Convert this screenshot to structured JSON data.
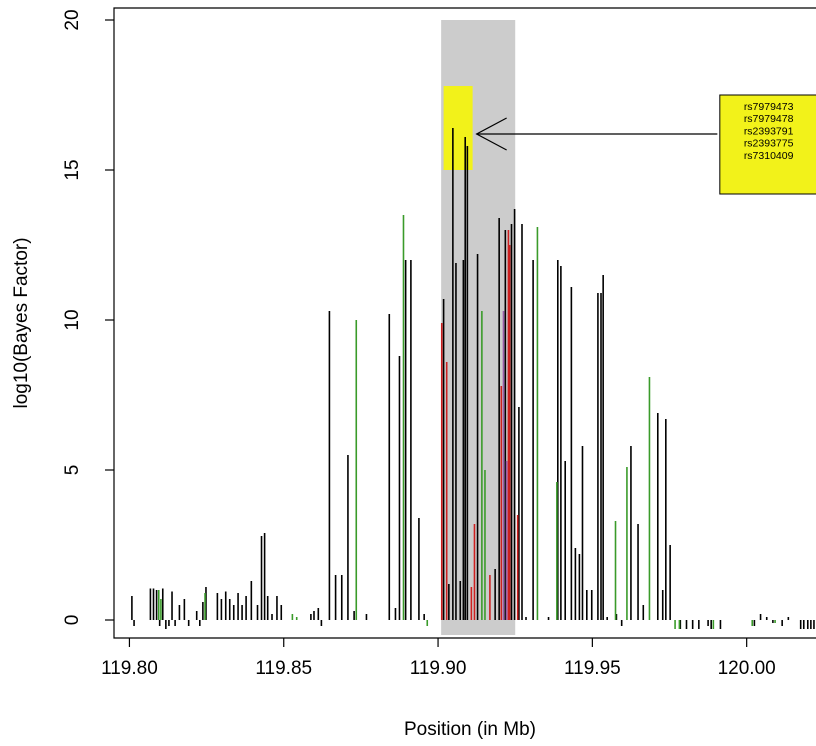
{
  "chart_data": {
    "type": "bar",
    "xlabel": "Position (in Mb)",
    "ylabel": "log10(Bayes Factor)",
    "xlim": [
      119.795,
      120.027
    ],
    "ylim": [
      -0.6,
      20.4
    ],
    "xticks": [
      119.8,
      119.85,
      119.9,
      119.95,
      120.0
    ],
    "xtick_labels": [
      "119.80",
      "119.85",
      "119.90",
      "119.95",
      "120.00"
    ],
    "yticks": [
      0,
      5,
      10,
      15,
      20
    ],
    "ytick_labels": [
      "0",
      "5",
      "10",
      "15",
      "20"
    ],
    "grid": false,
    "legend": "none",
    "colors": {
      "black": "#000000",
      "green": "#3a9b2a",
      "red": "#cc2020",
      "purple": "#9a5ca8",
      "region": "#cccccc",
      "highlight": "#f2f21a"
    },
    "highlight_region": {
      "x": [
        119.901,
        119.925
      ],
      "y": [
        -0.5,
        20.0
      ]
    },
    "peak_highlight": {
      "x": [
        119.9018,
        119.9112
      ],
      "y": [
        15.0,
        17.8
      ]
    },
    "annotation": {
      "arrow_target": {
        "x": 119.9125,
        "y": 16.2
      },
      "arrow_tail": {
        "x": 119.9905,
        "y": 16.2
      },
      "box": {
        "x": [
          119.9913,
          120.027
        ],
        "y": [
          14.2,
          17.5
        ]
      },
      "lines": [
        "rs7979473",
        "rs7979478",
        "rs2393791",
        "rs2393775",
        "rs7310409"
      ]
    },
    "series": [
      {
        "color": "black",
        "points": [
          [
            119.8008,
            0.8
          ],
          [
            119.8015,
            -0.2
          ],
          [
            119.8068,
            1.05
          ],
          [
            119.8078,
            1.05
          ],
          [
            119.8088,
            1.0
          ],
          [
            119.8098,
            -0.2
          ],
          [
            119.8108,
            1.05
          ],
          [
            119.8118,
            -0.3
          ],
          [
            119.8128,
            -0.2
          ],
          [
            119.8138,
            0.95
          ],
          [
            119.8148,
            -0.2
          ],
          [
            119.8162,
            0.5
          ],
          [
            119.8178,
            0.7
          ],
          [
            119.8192,
            -0.2
          ],
          [
            119.8218,
            0.3
          ],
          [
            119.8228,
            -0.2
          ],
          [
            119.8238,
            0.6
          ],
          [
            119.8248,
            1.1
          ],
          [
            119.8285,
            0.9
          ],
          [
            119.8298,
            0.7
          ],
          [
            119.8312,
            0.95
          ],
          [
            119.8325,
            0.7
          ],
          [
            119.8338,
            0.5
          ],
          [
            119.8352,
            0.9
          ],
          [
            119.8365,
            0.5
          ],
          [
            119.8378,
            0.8
          ],
          [
            119.8395,
            1.3
          ],
          [
            119.8415,
            0.5
          ],
          [
            119.8428,
            2.8
          ],
          [
            119.8438,
            2.9
          ],
          [
            119.8448,
            0.8
          ],
          [
            119.8462,
            0.2
          ],
          [
            119.8478,
            0.8
          ],
          [
            119.8492,
            0.5
          ],
          [
            119.8588,
            0.2
          ],
          [
            119.8598,
            0.3
          ],
          [
            119.8612,
            0.4
          ],
          [
            119.8622,
            -0.2
          ],
          [
            119.8648,
            10.3
          ],
          [
            119.8668,
            1.5
          ],
          [
            119.8688,
            1.5
          ],
          [
            119.8708,
            5.5
          ],
          [
            119.8728,
            0.3
          ],
          [
            119.8768,
            0.2
          ],
          [
            119.8842,
            10.2
          ],
          [
            119.8862,
            0.4
          ],
          [
            119.8875,
            8.8
          ],
          [
            119.8895,
            12.0
          ],
          [
            119.8912,
            12.0
          ],
          [
            119.8938,
            3.4
          ],
          [
            119.8955,
            0.2
          ],
          [
            119.9018,
            10.7
          ],
          [
            119.9035,
            1.2
          ],
          [
            119.9048,
            16.4
          ],
          [
            119.9058,
            11.9
          ],
          [
            119.9072,
            1.3
          ],
          [
            119.9082,
            12.0
          ],
          [
            119.9088,
            16.1
          ],
          [
            119.9095,
            15.8
          ],
          [
            119.9128,
            12.2
          ],
          [
            119.9185,
            1.7
          ],
          [
            119.9198,
            13.4
          ],
          [
            119.9218,
            13.0
          ],
          [
            119.9238,
            13.2
          ],
          [
            119.9248,
            13.7
          ],
          [
            119.9262,
            7.1
          ],
          [
            119.9272,
            13.2
          ],
          [
            119.9285,
            0.1
          ],
          [
            119.9308,
            12.0
          ],
          [
            119.9358,
            0.1
          ],
          [
            119.9388,
            12.0
          ],
          [
            119.9398,
            11.8
          ],
          [
            119.9412,
            5.3
          ],
          [
            119.9432,
            11.1
          ],
          [
            119.9445,
            2.4
          ],
          [
            119.9458,
            2.2
          ],
          [
            119.9468,
            5.8
          ],
          [
            119.9482,
            1.0
          ],
          [
            119.9498,
            1.0
          ],
          [
            119.9518,
            10.9
          ],
          [
            119.9528,
            10.9
          ],
          [
            119.9535,
            11.5
          ],
          [
            119.9548,
            0.1
          ],
          [
            119.9578,
            0.2
          ],
          [
            119.9595,
            -0.2
          ],
          [
            119.9625,
            5.8
          ],
          [
            119.9648,
            3.2
          ],
          [
            119.9665,
            0.5
          ],
          [
            119.9712,
            6.9
          ],
          [
            119.9728,
            1.0
          ],
          [
            119.9738,
            6.7
          ],
          [
            119.9752,
            2.5
          ],
          [
            119.9785,
            -0.3
          ],
          [
            119.9805,
            -0.3
          ],
          [
            119.9825,
            -0.3
          ],
          [
            119.9845,
            -0.3
          ],
          [
            119.9875,
            -0.2
          ],
          [
            119.9885,
            -0.3
          ],
          [
            119.9915,
            -0.3
          ],
          [
            120.0025,
            -0.2
          ],
          [
            120.0045,
            0.2
          ],
          [
            120.0065,
            0.1
          ],
          [
            120.0085,
            -0.1
          ],
          [
            120.0115,
            -0.2
          ],
          [
            120.0135,
            0.1
          ],
          [
            120.0175,
            -0.3
          ],
          [
            120.0185,
            -0.3
          ],
          [
            120.0198,
            -0.3
          ],
          [
            120.0208,
            -0.3
          ],
          [
            120.0218,
            -0.3
          ],
          [
            120.0228,
            -0.3
          ],
          [
            120.0238,
            -0.3
          ]
        ]
      },
      {
        "color": "green",
        "points": [
          [
            119.8095,
            1.0
          ],
          [
            119.8102,
            0.7
          ],
          [
            119.8245,
            0.9
          ],
          [
            119.8528,
            0.2
          ],
          [
            119.8542,
            0.1
          ],
          [
            119.8735,
            10.0
          ],
          [
            119.8888,
            13.5
          ],
          [
            119.8965,
            -0.2
          ],
          [
            119.9142,
            10.3
          ],
          [
            119.9152,
            5.0
          ],
          [
            119.9322,
            13.1
          ],
          [
            119.9385,
            4.6
          ],
          [
            119.9575,
            3.3
          ],
          [
            119.9612,
            5.1
          ],
          [
            119.9685,
            8.1
          ],
          [
            119.9768,
            -0.3
          ],
          [
            119.9782,
            -0.3
          ],
          [
            119.9892,
            -0.3
          ],
          [
            120.0018,
            -0.2
          ],
          [
            120.0092,
            -0.1
          ]
        ]
      },
      {
        "color": "red",
        "points": [
          [
            119.9012,
            9.9
          ],
          [
            119.9028,
            8.6
          ],
          [
            119.9108,
            1.1
          ],
          [
            119.9118,
            3.2
          ],
          [
            119.9168,
            1.5
          ],
          [
            119.9205,
            7.8
          ],
          [
            119.9228,
            13.0
          ],
          [
            119.9232,
            12.5
          ],
          [
            119.9258,
            3.5
          ]
        ]
      },
      {
        "color": "purple",
        "points": [
          [
            119.9212,
            10.3
          ],
          [
            119.9222,
            5.3
          ]
        ]
      }
    ]
  }
}
